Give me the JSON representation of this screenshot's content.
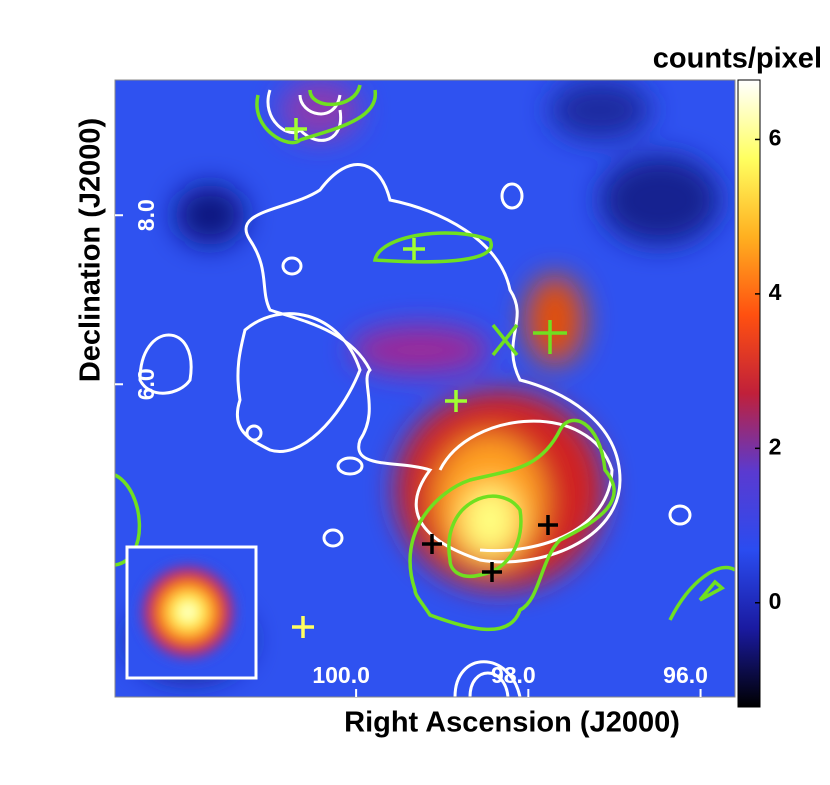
{
  "chart_data": {
    "type": "image",
    "colorbar_label": "counts/pixel",
    "x_label": "Right Ascension (J2000)",
    "y_label": "Declination (J2000)",
    "xlim": [
      102.8,
      95.6
    ],
    "ylim": [
      2.3,
      9.6
    ],
    "xticks": [
      {
        "value": 100,
        "label": "100.0"
      },
      {
        "value": 98,
        "label": "98.0"
      },
      {
        "value": 96,
        "label": "96.0"
      }
    ],
    "yticks": [
      {
        "value": 8,
        "label": "8.0"
      },
      {
        "value": 6,
        "label": "6.0"
      }
    ],
    "clim": [
      -1.35,
      6.77
    ],
    "cticks": [
      0,
      2,
      4,
      6
    ],
    "colormap": [
      "#000000",
      "#1a1aa0",
      "#2a4cf0",
      "#5a3ad0",
      "#c0203a",
      "#ff5010",
      "#ffb020",
      "#ffff60",
      "#ffffff"
    ]
  }
}
